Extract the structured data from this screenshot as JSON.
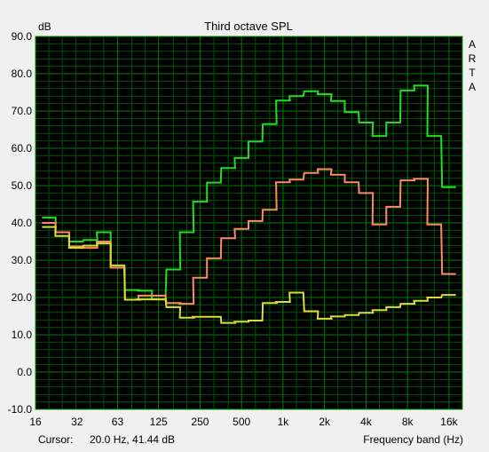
{
  "window": {
    "brand_letters": [
      "A",
      "R",
      "T",
      "A"
    ],
    "background": "#f0f0f0"
  },
  "status": {
    "cursor_label": "Cursor:",
    "cursor_value": "20.0 Hz, 41.44 dB"
  },
  "chart_data": {
    "type": "line",
    "title": "Third octave SPL",
    "ylabel": "dB",
    "xlabel": "Frequency band (Hz)",
    "x_scale": "log",
    "xlim": [
      16,
      20000
    ],
    "ylim": [
      -10,
      90
    ],
    "grid": true,
    "plot_background": "#000000",
    "grid_color": "#008000",
    "x_tick_values": [
      16,
      32,
      63,
      125,
      250,
      500,
      1000,
      2000,
      4000,
      8000,
      16000
    ],
    "x_tick_labels": [
      "16",
      "32",
      "63",
      "125",
      "250",
      "500",
      "1k",
      "2k",
      "4k",
      "8k",
      "16k"
    ],
    "y_tick_values": [
      -10,
      0,
      10,
      20,
      30,
      40,
      50,
      60,
      70,
      80,
      90
    ],
    "y_tick_labels": [
      "-10.0",
      "0.0",
      "10.0",
      "20.0",
      "30.0",
      "40.0",
      "50.0",
      "60.0",
      "70.0",
      "80.0",
      "90.0"
    ],
    "bands": [
      20,
      25,
      31.5,
      40,
      50,
      63,
      80,
      100,
      125,
      160,
      200,
      250,
      315,
      400,
      500,
      630,
      800,
      1000,
      1250,
      1600,
      2000,
      2500,
      3150,
      4000,
      5000,
      6300,
      8000,
      10000,
      12500,
      16000
    ],
    "series": [
      {
        "color": "#22dd22",
        "values": [
          41.4,
          37.5,
          35.0,
          35.4,
          37.5,
          28.0,
          22.0,
          21.8,
          19.5,
          27.5,
          37.5,
          45.7,
          50.8,
          54.7,
          57.4,
          61.8,
          66.5,
          72.8,
          74.0,
          75.3,
          74.5,
          72.7,
          69.7,
          66.9,
          63.3,
          66.9,
          75.5,
          76.8,
          63.3,
          49.6
        ]
      },
      {
        "color": "#ff8866",
        "values": [
          40.0,
          37.5,
          33.7,
          33.3,
          35.0,
          28.0,
          19.4,
          20.5,
          20.5,
          18.5,
          18.3,
          25.3,
          30.5,
          35.9,
          38.4,
          40.5,
          43.5,
          50.9,
          51.6,
          53.4,
          54.4,
          52.9,
          50.9,
          48.0,
          39.6,
          44.3,
          51.4,
          51.8,
          39.6,
          26.3
        ]
      },
      {
        "color": "#dddd33",
        "values": [
          38.9,
          36.5,
          33.3,
          33.9,
          34.5,
          28.6,
          19.4,
          19.5,
          19.5,
          17.4,
          14.6,
          14.8,
          14.8,
          13.2,
          13.5,
          13.8,
          18.5,
          18.8,
          21.3,
          16.3,
          14.3,
          14.9,
          15.3,
          15.9,
          16.6,
          17.4,
          18.3,
          19.1,
          20.0,
          20.7
        ]
      }
    ]
  }
}
